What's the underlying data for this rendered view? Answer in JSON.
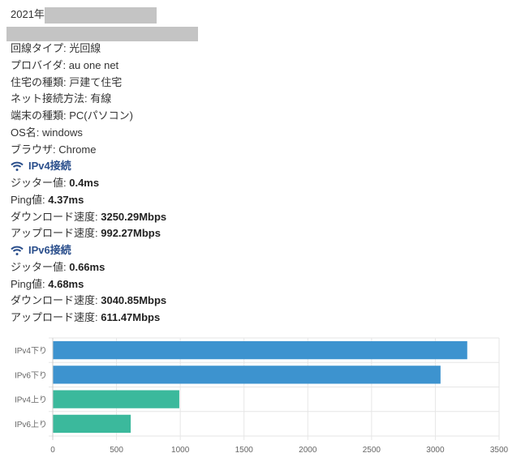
{
  "header": {
    "year": "2021年"
  },
  "info": [
    {
      "label": "回線タイプ: ",
      "value": "光回線"
    },
    {
      "label": "プロバイダ: ",
      "value": "au one net"
    },
    {
      "label": "住宅の種類: ",
      "value": "戸建て住宅"
    },
    {
      "label": "ネット接続方法: ",
      "value": "有線"
    },
    {
      "label": "端末の種類: ",
      "value": "PC(パソコン)"
    },
    {
      "label": "OS名: ",
      "value": "windows"
    },
    {
      "label": "ブラウザ: ",
      "value": "Chrome"
    }
  ],
  "ipv4": {
    "title": "IPv4接続",
    "icon": "wifi-icon",
    "rows": [
      {
        "label": "ジッター値: ",
        "value": "0.4ms"
      },
      {
        "label": "Ping値: ",
        "value": "4.37ms"
      },
      {
        "label": "ダウンロード速度: ",
        "value": "3250.29Mbps"
      },
      {
        "label": "アップロード速度: ",
        "value": "992.27Mbps"
      }
    ]
  },
  "ipv6": {
    "title": "IPv6接続",
    "icon": "wifi-icon",
    "rows": [
      {
        "label": "ジッター値: ",
        "value": "0.66ms"
      },
      {
        "label": "Ping値: ",
        "value": "4.68ms"
      },
      {
        "label": "ダウンロード速度: ",
        "value": "3040.85Mbps"
      },
      {
        "label": "アップロード速度: ",
        "value": "611.47Mbps"
      }
    ]
  },
  "chart_data": {
    "type": "bar",
    "orientation": "horizontal",
    "categories": [
      "IPv4下り",
      "IPv6下り",
      "IPv4上り",
      "IPv6上り"
    ],
    "values": [
      3250.29,
      3040.85,
      992.27,
      611.47
    ],
    "colors": [
      "#3d93cf",
      "#3d93cf",
      "#3bb99c",
      "#3bb99c"
    ],
    "xlim": [
      0,
      3500
    ],
    "xticks": [
      0,
      500,
      1000,
      1500,
      2000,
      2500,
      3000,
      3500
    ],
    "grid": true
  }
}
